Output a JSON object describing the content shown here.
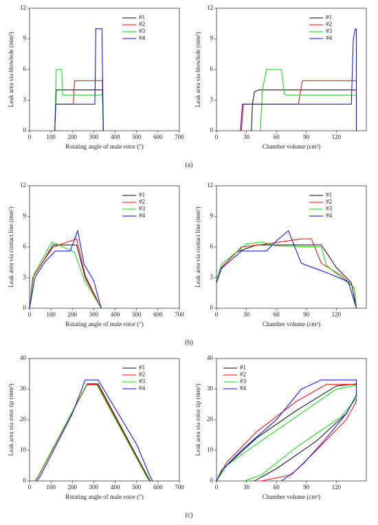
{
  "panel_labels": [
    "(a)",
    "(b)",
    "(c)"
  ],
  "chart_data": [
    {
      "type": "line",
      "xlabel": "Rotating angle of male rotor (°)",
      "ylabel": "Leak area via blowhole (mm²)",
      "xlim": [
        0,
        700
      ],
      "xticks": [
        0,
        100,
        200,
        300,
        400,
        500,
        600,
        700
      ],
      "ylim": [
        0,
        12
      ],
      "yticks": [
        0,
        3,
        6,
        9,
        12
      ],
      "legend": "upper right",
      "series": [
        {
          "name": "#1",
          "color": "#000000",
          "x": [
            118,
            125,
            340,
            345
          ],
          "values": [
            0,
            4,
            4,
            0
          ]
        },
        {
          "name": "#2",
          "color": "#ff0000",
          "x": [
            118,
            122,
            205,
            210,
            340,
            345
          ],
          "values": [
            0,
            2.6,
            2.6,
            4.9,
            4.9,
            0
          ]
        },
        {
          "name": "#3",
          "color": "#00dd00",
          "x": [
            118,
            125,
            150,
            155,
            340,
            345
          ],
          "values": [
            0,
            6,
            6,
            3.5,
            3.5,
            0
          ]
        },
        {
          "name": "#4",
          "color": "#0000ff",
          "x": [
            118,
            122,
            305,
            310,
            338,
            345
          ],
          "values": [
            0,
            2.6,
            2.6,
            10,
            10,
            0
          ]
        }
      ]
    },
    {
      "type": "line",
      "xlabel": "Chamber volume (cm³)",
      "ylabel": "Leak area via blowhole (mm²)",
      "xlim": [
        0,
        150
      ],
      "xticks": [
        0,
        30,
        60,
        90,
        120
      ],
      "ylim": [
        0,
        12
      ],
      "yticks": [
        0,
        3,
        6,
        9,
        12
      ],
      "legend": "upper right",
      "series": [
        {
          "name": "#1",
          "color": "#000000",
          "x": [
            35,
            36,
            38,
            42,
            140
          ],
          "values": [
            0,
            2.6,
            3.8,
            4,
            4
          ]
        },
        {
          "name": "#2",
          "color": "#ff0000",
          "x": [
            25,
            27,
            82,
            86,
            140
          ],
          "values": [
            0,
            2.6,
            2.6,
            4.9,
            4.9
          ]
        },
        {
          "name": "#3",
          "color": "#00dd00",
          "x": [
            44,
            46,
            50,
            65,
            68,
            70,
            140
          ],
          "values": [
            0,
            4,
            6,
            6,
            3.6,
            3.5,
            3.5
          ]
        },
        {
          "name": "#4",
          "color": "#0000ff",
          "x": [
            24,
            26,
            135,
            137,
            139,
            140,
            140
          ],
          "values": [
            0,
            2.6,
            2.6,
            9,
            10,
            9.9,
            0
          ]
        }
      ]
    },
    {
      "type": "line",
      "xlabel": "Rotating angle of male rotor (°)",
      "ylabel": "Leak area via contact line (mm²)",
      "xlim": [
        0,
        700
      ],
      "xticks": [
        0,
        100,
        200,
        300,
        400,
        500,
        600,
        700
      ],
      "ylim": [
        0,
        12
      ],
      "yticks": [
        0,
        3,
        6,
        9,
        12
      ],
      "legend": "upper right",
      "series": [
        {
          "name": "#1",
          "color": "#000000",
          "x": [
            0,
            15,
            60,
            110,
            220,
            260,
            335
          ],
          "values": [
            0,
            3,
            4.5,
            6.2,
            6.2,
            3,
            0
          ]
        },
        {
          "name": "#2",
          "color": "#ff0000",
          "x": [
            0,
            15,
            60,
            110,
            220,
            260,
            335
          ],
          "values": [
            0,
            3,
            4.5,
            6,
            6.8,
            3.2,
            0
          ]
        },
        {
          "name": "#3",
          "color": "#00dd00",
          "x": [
            0,
            20,
            105,
            210,
            255,
            335
          ],
          "values": [
            0,
            3.3,
            6.5,
            5.5,
            2.8,
            0
          ]
        },
        {
          "name": "#4",
          "color": "#0000ff",
          "x": [
            0,
            25,
            70,
            120,
            190,
            225,
            255,
            300,
            335
          ],
          "values": [
            0,
            3,
            4.5,
            5.6,
            5.6,
            7.6,
            4.3,
            2.7,
            0
          ]
        }
      ]
    },
    {
      "type": "line",
      "xlabel": "Chamber volume (cm³)",
      "ylabel": "Leak area via contact line (mm²)",
      "xlim": [
        0,
        150
      ],
      "xticks": [
        0,
        30,
        60,
        90,
        120
      ],
      "ylim": [
        0,
        12
      ],
      "yticks": [
        0,
        3,
        6,
        9,
        12
      ],
      "legend": "upper right",
      "series": [
        {
          "name": "#1",
          "color": "#000000",
          "x": [
            0,
            5,
            20,
            40,
            105,
            120,
            135,
            140
          ],
          "values": [
            2.5,
            4,
            5.5,
            6.2,
            6.2,
            4,
            2.5,
            0
          ]
        },
        {
          "name": "#2",
          "color": "#ff0000",
          "x": [
            0,
            5,
            25,
            50,
            85,
            95,
            105,
            125,
            138,
            140
          ],
          "values": [
            2.5,
            4,
            6,
            6.3,
            6.8,
            6.8,
            4.4,
            3.2,
            2,
            0
          ]
        },
        {
          "name": "#3",
          "color": "#00dd00",
          "x": [
            0,
            5,
            30,
            45,
            60,
            105,
            110,
            125,
            138,
            140
          ],
          "values": [
            2.8,
            4.3,
            6.3,
            6.5,
            6.1,
            6,
            4.2,
            3,
            2,
            0
          ]
        },
        {
          "name": "#4",
          "color": "#0000ff",
          "x": [
            0,
            5,
            25,
            50,
            60,
            72,
            85,
            110,
            132,
            140
          ],
          "values": [
            2.5,
            3.9,
            5.6,
            5.6,
            6.6,
            7.6,
            4.4,
            3.5,
            2.6,
            0
          ]
        }
      ]
    },
    {
      "type": "line",
      "xlabel": "Rotating angle of male rotor (°)",
      "ylabel": "Leak area via rotor tip (mm²)",
      "xlim": [
        0,
        700
      ],
      "xticks": [
        0,
        100,
        200,
        300,
        400,
        500,
        600,
        700
      ],
      "ylim": [
        0,
        40
      ],
      "yticks": [
        0,
        10,
        20,
        30,
        40
      ],
      "legend": "upper right",
      "series": [
        {
          "name": "#1",
          "color": "#000000",
          "x": [
            25,
            40,
            270,
            320,
            555,
            565
          ],
          "values": [
            0,
            1.5,
            31.7,
            31.7,
            1,
            0
          ]
        },
        {
          "name": "#2",
          "color": "#ff0000",
          "x": [
            27,
            42,
            268,
            318,
            552,
            562
          ],
          "values": [
            0,
            1.5,
            31.5,
            31.5,
            1,
            0
          ]
        },
        {
          "name": "#3",
          "color": "#00dd00",
          "x": [
            25,
            40,
            265,
            315,
            550,
            560
          ],
          "values": [
            0,
            1.5,
            31.3,
            31.3,
            1,
            0
          ]
        },
        {
          "name": "#4",
          "color": "#0000ff",
          "x": [
            35,
            50,
            200,
            260,
            320,
            500,
            560,
            575
          ],
          "values": [
            0,
            1.5,
            22,
            33,
            33,
            12,
            2,
            0
          ]
        }
      ]
    },
    {
      "type": "line",
      "xlabel": "Chamber volume (cm³)",
      "ylabel": "Leak area via rotor tip (mm²)",
      "xlim": [
        0,
        150
      ],
      "xticks": [
        0,
        30,
        60,
        90,
        120
      ],
      "ylim": [
        0,
        40
      ],
      "yticks": [
        0,
        10,
        20,
        30,
        40
      ],
      "legend": "upper left",
      "series": [
        {
          "name": "#1",
          "color": "#000000",
          "x": [
            0,
            10,
            40,
            80,
            120,
            140,
            140,
            130,
            100,
            60,
            38
          ],
          "values": [
            0,
            5,
            14,
            23,
            31,
            31.7,
            28,
            22,
            13,
            4,
            0
          ]
        },
        {
          "name": "#2",
          "color": "#ff0000",
          "x": [
            0,
            10,
            40,
            80,
            110,
            140,
            140,
            130,
            100,
            75,
            45
          ],
          "values": [
            0,
            6,
            16,
            26,
            31.5,
            31.5,
            26,
            20,
            10,
            2,
            0
          ]
        },
        {
          "name": "#3",
          "color": "#00dd00",
          "x": [
            0,
            10,
            40,
            80,
            120,
            140,
            140,
            125,
            80,
            45,
            28
          ],
          "values": [
            0,
            5,
            12,
            21,
            30,
            31.3,
            27,
            21,
            11,
            2,
            0
          ]
        },
        {
          "name": "#4",
          "color": "#0000ff",
          "x": [
            0,
            5,
            25,
            60,
            85,
            105,
            140,
            140,
            130,
            110,
            88,
            78,
            65
          ],
          "values": [
            0,
            3.5,
            10,
            20,
            30,
            33,
            33,
            28,
            22,
            14,
            6,
            3,
            0
          ]
        }
      ]
    }
  ]
}
